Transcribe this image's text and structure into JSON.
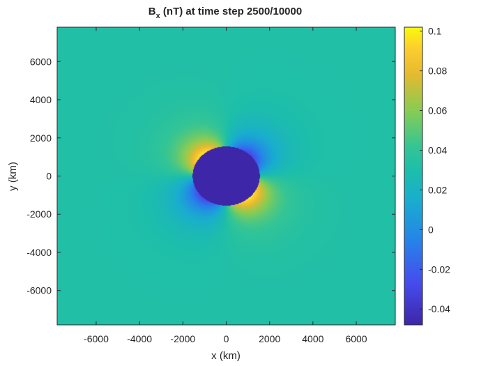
{
  "chart_data": {
    "type": "heatmap",
    "title": {
      "main": "B",
      "subscript": "x",
      "rest": " (nT) at time step 2500/10000"
    },
    "xlabel": "x (km)",
    "ylabel": "y (km)",
    "xlim": [
      -7800,
      7800
    ],
    "ylim": [
      -7800,
      7800
    ],
    "xticks": [
      -6000,
      -4000,
      -2000,
      0,
      2000,
      4000,
      6000
    ],
    "xtick_labels": [
      "-6000",
      "-4000",
      "-2000",
      "0",
      "2000",
      "4000",
      "6000"
    ],
    "yticks": [
      6000,
      4000,
      2000,
      0,
      -2000,
      -4000,
      -6000
    ],
    "ytick_labels": [
      "6000",
      "4000",
      "2000",
      "0",
      "-2000",
      "-4000",
      "-6000"
    ],
    "colorbar": {
      "colormap": "parula",
      "range": [
        -0.048,
        0.102
      ],
      "ticks": [
        0.1,
        0.08,
        0.06,
        0.04,
        0.02,
        0,
        -0.02,
        -0.04
      ],
      "tick_labels": [
        "0.1",
        "0.08",
        "0.06",
        "0.04",
        "0.02",
        "0",
        "-0.02",
        "-0.04"
      ]
    },
    "field": {
      "background_value": 0.032,
      "obstacle": {
        "center": [
          0,
          0
        ],
        "radius": 1550,
        "value": -0.048
      },
      "lobes": [
        {
          "quadrant": "upper-left",
          "sign": "positive",
          "peak": 0.1
        },
        {
          "quadrant": "upper-right",
          "sign": "negative",
          "peak": -0.03
        },
        {
          "quadrant": "lower-left",
          "sign": "negative",
          "peak": -0.03
        },
        {
          "quadrant": "lower-right",
          "sign": "positive",
          "peak": 0.1
        }
      ]
    },
    "grid": false,
    "legend": "none"
  }
}
